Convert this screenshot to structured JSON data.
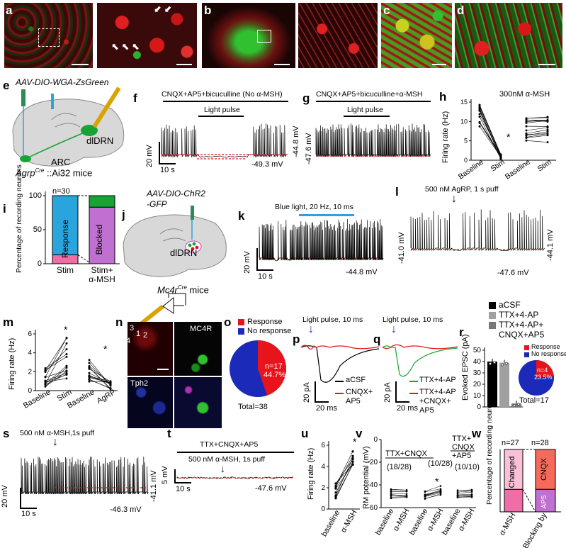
{
  "panels": {
    "a": "a",
    "b": "b",
    "c": "c",
    "d": "d",
    "e": "e",
    "f": "f",
    "g": "g",
    "h": "h",
    "i": "i",
    "j": "j",
    "k": "k",
    "l": "l",
    "m": "m",
    "n": "n",
    "o": "o",
    "p": "p",
    "q": "q",
    "r": "r",
    "s": "s",
    "t": "t",
    "u": "u",
    "v": "v",
    "w": "w"
  },
  "colors": {
    "red": "#e8141c",
    "green": "#18a335",
    "blue": "#2aa4dd",
    "purple": "#c070d0",
    "pink": "#f06ea8"
  },
  "e": {
    "virus": "AAV-DIO-WGA-ZsGreen",
    "region_top": "dlDRN",
    "region_bottom": "ARC",
    "mouse": "Agrp",
    "mouse_sup": "Cre",
    "mouse_tail": " ::Ai32 mice"
  },
  "f": {
    "title": "CNQX+AP5+bicuculline (No α-MSH)",
    "light": "Light pulse",
    "scale_v": "20 mV",
    "scale_t": "10 s",
    "vm": "-49.3 mV",
    "vm_right": "-44.8 mV"
  },
  "g": {
    "title": "CNQX+AP5+bicuculline+α-MSH",
    "light": "Light pulse",
    "vm_left": "-47.6 mV"
  },
  "h": {
    "ylabel": "Firing rate (Hz)",
    "yticks": [
      "0",
      "5",
      "10",
      "15"
    ],
    "xticks": [
      "Baseline",
      "Stim",
      "Baseline",
      "Stim"
    ],
    "note": "300nM α-MSH",
    "star": "*"
  },
  "i": {
    "ylabel": "Percentage of recording neurons",
    "yticks": [
      "0",
      "50",
      "100"
    ],
    "n": "n=30",
    "bar1": "Response",
    "bar2": "Blocked",
    "x1": "Stim",
    "x2": "Stim+",
    "x2b": "α-MSH"
  },
  "j": {
    "virus": "AAV-DIO-ChR2",
    "virus2": "-GFP",
    "region": "dlDRN",
    "mouse": "Mc4r",
    "mouse_sup": "Cre",
    "mouse_tail": " mice"
  },
  "k": {
    "title": "Blue light, 20 Hz, 10 ms",
    "scale_v": "20 mV",
    "scale_t": "10 s",
    "vm": "-44.8 mV"
  },
  "l": {
    "title": "500 nM AgRP, 1 s puff",
    "vm_left": "-41.0 mV",
    "vm_right": "-44.1 mV",
    "vm": "-47.6 mV"
  },
  "m": {
    "ylabel": "Firing rate (Hz)",
    "yticks": [
      "0",
      "2",
      "4",
      "6"
    ],
    "xticks": [
      "Baseline",
      "Stim",
      "Baseline",
      "AgRP"
    ],
    "star": "*"
  },
  "n": {
    "cells": [
      "1",
      "2",
      "3",
      "4"
    ],
    "labels": [
      "MC4R",
      "Tph2"
    ]
  },
  "o": {
    "legend": [
      "Response",
      "No response"
    ],
    "n": "n=17",
    "pct": "44.7%",
    "total": "Total=38"
  },
  "p": {
    "title": "Light pulse, 10 ms",
    "legend": [
      "aCSF",
      "CNQX+",
      "AP5"
    ],
    "scale_i": "20 pA",
    "scale_t": "20 ms"
  },
  "q": {
    "title": "Light pulse, 10 ms",
    "legend": [
      "TTX+4-AP",
      "TTX+4-AP",
      "+CNQX+",
      "AP5"
    ],
    "scale_i": "20 pA",
    "scale_t": "20 ms"
  },
  "r": {
    "legend": [
      "aCSF",
      "TTX+4-AP",
      "TTX+4-AP+",
      "CNQX+AP5"
    ],
    "ylabel": "Evoked EPSC (pA)",
    "yticks": [
      "0",
      "10",
      "20",
      "30",
      "40",
      "50"
    ],
    "pie_legend": [
      "Response",
      "No response"
    ],
    "n": "n=4",
    "pct": "23.5%",
    "total": "Total=17"
  },
  "s": {
    "title": "500 nM α-MSH,1s puff",
    "scale_v": "20 mV",
    "scale_t": "10 s",
    "vm": "-46.3 mV",
    "vm_right": "-41.1 mV"
  },
  "t": {
    "title": "TTX+CNQX+AP5",
    "puff": "500 nM α-MSH, 1s puff",
    "scale_v": "5 mV",
    "scale_t": "10 s",
    "vm": "-47.6 mV"
  },
  "u": {
    "ylabel": "Firing rate (Hz)",
    "yticks": [
      "0",
      "2",
      "4",
      "6"
    ],
    "xticks": [
      "baseline",
      "α-MSH"
    ],
    "star": "*"
  },
  "v": {
    "ylabel": "RM potential (mV)",
    "yticks": [
      "0",
      "-20",
      "-40",
      "-60"
    ],
    "cond1": "TTX+CNQX",
    "cond2a": "TTX+",
    "cond2b": "CNQX",
    "cond2c": "+AP5",
    "counts": [
      "(18/28)",
      "(10/28)",
      "(10/10)"
    ],
    "xticks": [
      "baseline",
      "α-MSH",
      "baseline",
      "α-MSH",
      "baseline",
      "α-MSH"
    ],
    "star": "*"
  },
  "w": {
    "ylabel": "Percentage of recording neurons",
    "n1": "n=27",
    "n2": "n=28",
    "bar1": "Changed",
    "seg_top": "CNQX",
    "seg_bot": "AP5",
    "x1": "α-MSH",
    "x2": "Blocking by"
  }
}
